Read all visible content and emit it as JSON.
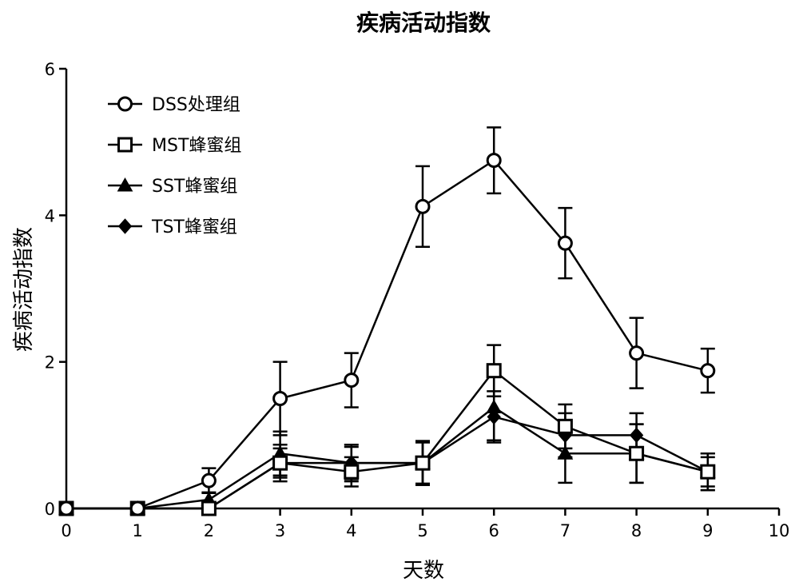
{
  "chart_data": {
    "type": "line",
    "title": "疾病活动指数",
    "xlabel": "天数",
    "ylabel": "疾病活动指数",
    "xlim": [
      0,
      10
    ],
    "ylim": [
      0,
      6
    ],
    "xticks": [
      "0",
      "1",
      "2",
      "3",
      "4",
      "5",
      "6",
      "7",
      "8",
      "9",
      "10"
    ],
    "yticks": [
      "0",
      "2",
      "4",
      "6"
    ],
    "grid": false,
    "legend_position": "top-left",
    "series": [
      {
        "name": "DSS处理组",
        "marker": "circle-open",
        "x": [
          0,
          1,
          2,
          3,
          4,
          5,
          6,
          7,
          8,
          9
        ],
        "y": [
          0,
          0,
          0.38,
          1.5,
          1.75,
          4.12,
          4.75,
          3.62,
          2.12,
          1.88
        ],
        "err": [
          0,
          0,
          0.17,
          0.5,
          0.37,
          0.55,
          0.45,
          0.48,
          0.48,
          0.3
        ]
      },
      {
        "name": "MST蜂蜜组",
        "marker": "square-open",
        "x": [
          0,
          1,
          2,
          3,
          4,
          5,
          6,
          7,
          8,
          9
        ],
        "y": [
          0,
          0,
          0,
          0.62,
          0.5,
          0.62,
          1.88,
          1.12,
          0.75,
          0.5
        ],
        "err": [
          0,
          0,
          0,
          0.25,
          0.2,
          0.3,
          0.35,
          0.3,
          0.4,
          0.25
        ]
      },
      {
        "name": "SST蜂蜜组",
        "marker": "triangle",
        "x": [
          0,
          1,
          2,
          3,
          4,
          5,
          6,
          7,
          8,
          9
        ],
        "y": [
          0,
          0,
          0.12,
          0.75,
          0.62,
          0.62,
          1.38,
          0.75,
          0.75,
          0.5
        ],
        "err": [
          0,
          0,
          0.1,
          0.3,
          0.25,
          0.3,
          0.45,
          0.4,
          0.4,
          0.25
        ]
      },
      {
        "name": "TST蜂蜜组",
        "marker": "diamond",
        "x": [
          0,
          1,
          2,
          3,
          4,
          5,
          6,
          7,
          8,
          9
        ],
        "y": [
          0,
          0,
          0,
          0.62,
          0.62,
          0.62,
          1.25,
          1.0,
          1.0,
          0.5
        ],
        "err": [
          0,
          0,
          0,
          0.2,
          0.22,
          0.28,
          0.35,
          0.3,
          0.3,
          0.2
        ]
      }
    ]
  }
}
